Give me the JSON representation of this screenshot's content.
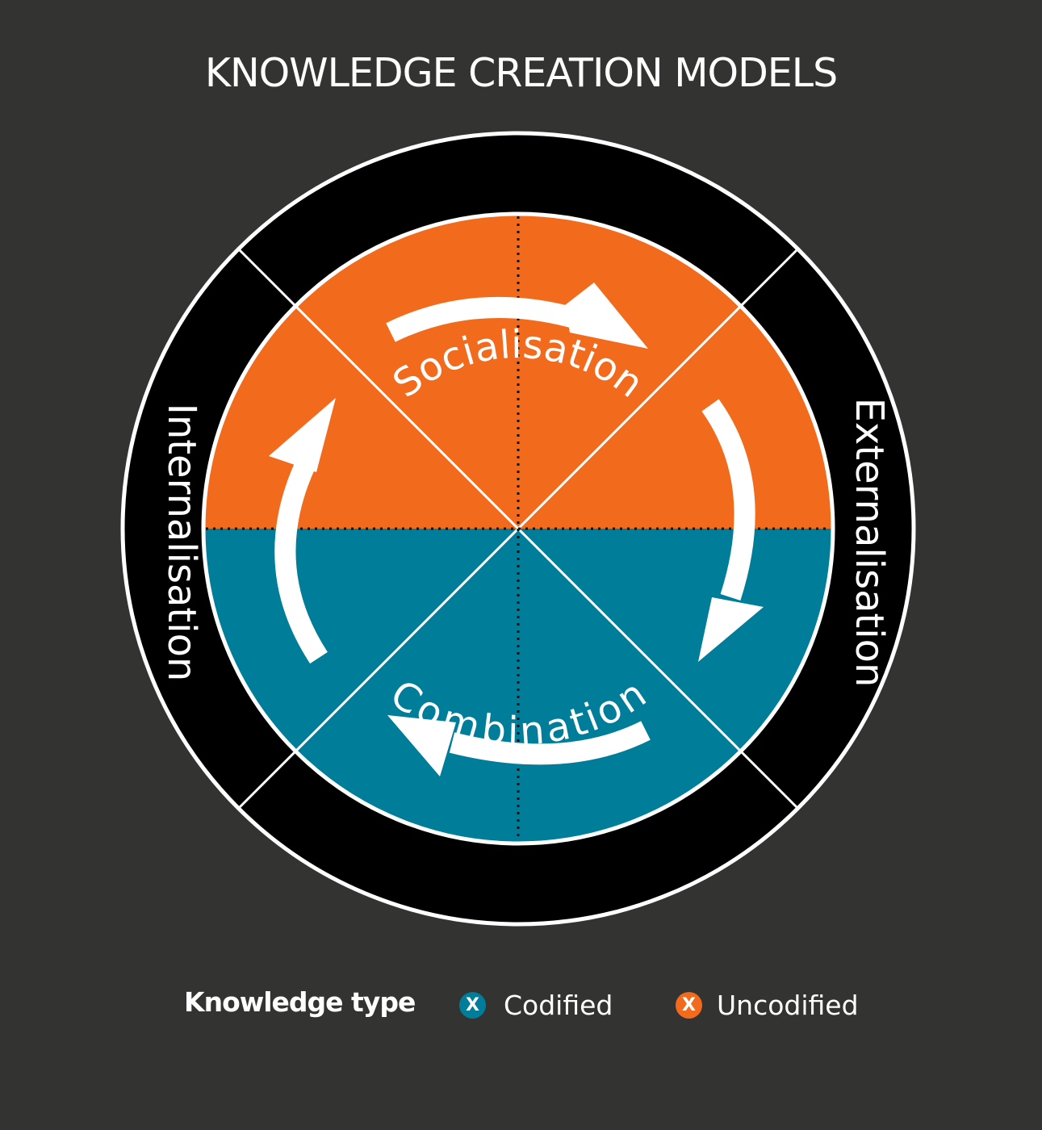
{
  "title": "KNOWLEDGE CREATION MODELS",
  "colors": {
    "background": "#333331",
    "ring": "#000000",
    "outline": "#ffffff",
    "uncodified": "#f26b1d",
    "codified": "#007d99",
    "arrow": "#ffffff"
  },
  "ring_labels": {
    "top": "Socialisation",
    "right": "Externalisation",
    "bottom": "Combination",
    "left": "Internalisation"
  },
  "legend": {
    "title": "Knowledge type",
    "items": [
      {
        "marker": "X",
        "label": "Codified",
        "color": "#007d99"
      },
      {
        "marker": "X",
        "label": "Uncodified",
        "color": "#f26b1d"
      }
    ]
  }
}
